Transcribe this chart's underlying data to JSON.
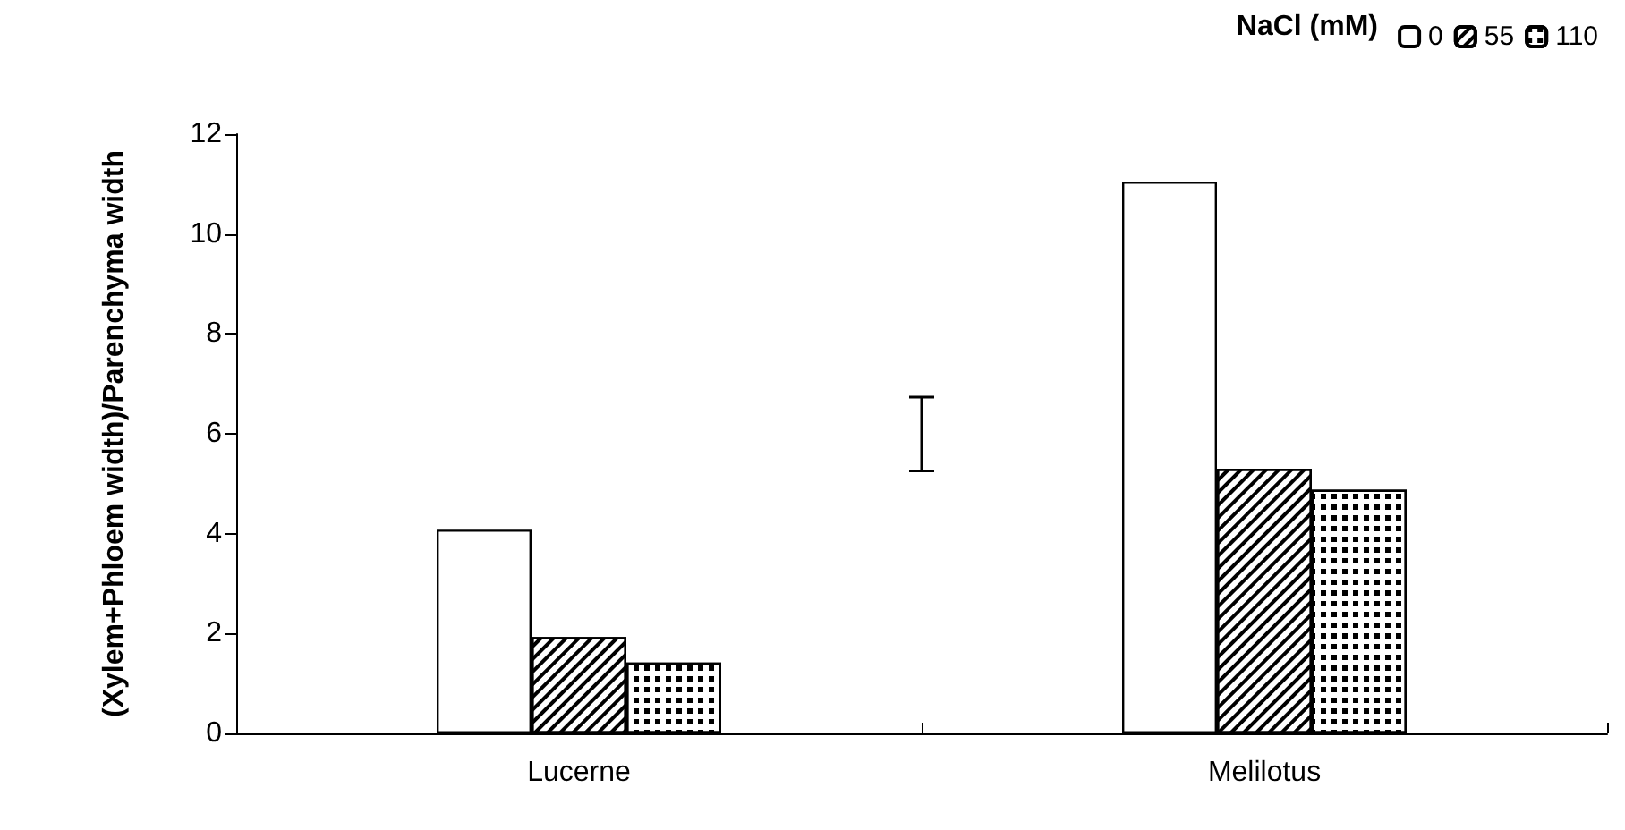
{
  "chart_data": {
    "type": "bar",
    "ylabel": "(Xylem+Phloem width)/Parenchyma width",
    "legend_title": "NaCl (mM)",
    "categories": [
      "Lucerne",
      "Melilotus"
    ],
    "series": [
      {
        "name": "0",
        "color": "#ffffff",
        "values": [
          4.08,
          11.05
        ]
      },
      {
        "name": "55",
        "color": "#ffffff",
        "values": [
          1.93,
          5.3
        ]
      },
      {
        "name": "110",
        "color": "#ffffff",
        "values": [
          1.42,
          4.88
        ]
      }
    ],
    "ylim": [
      0,
      12
    ],
    "yticks": [
      0,
      2,
      4,
      6,
      8,
      10,
      12
    ],
    "grid": false,
    "legend": "top right"
  }
}
